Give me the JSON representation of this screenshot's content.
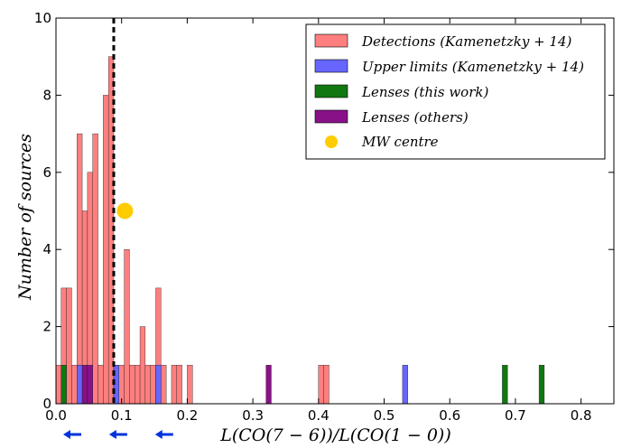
{
  "chart_data": {
    "type": "bar",
    "subtype": "stacked-histogram",
    "xlabel": "L(CO(7 − 6))/L(CO(1 − 0))",
    "ylabel": "Number of sources",
    "xlim": [
      0.0,
      0.85
    ],
    "ylim": [
      0,
      10
    ],
    "xticks": [
      0.0,
      0.1,
      0.2,
      0.3,
      0.4,
      0.5,
      0.6,
      0.7,
      0.8
    ],
    "xtick_labels": [
      "0.0",
      "0.1",
      "0.2",
      "0.3",
      "0.4",
      "0.5",
      "0.6",
      "0.7",
      "0.8"
    ],
    "yticks": [
      0,
      2,
      4,
      6,
      8,
      10
    ],
    "ytick_labels": [
      "0",
      "2",
      "4",
      "6",
      "8",
      "10"
    ],
    "bin_width": 0.008,
    "grid": false,
    "legend_position": "top-right",
    "series": [
      {
        "key": "detections",
        "name": "Detections (Kamenetzky + 14)",
        "color": "#ff7f7f",
        "bins": [
          {
            "x": 0.0,
            "count": 1
          },
          {
            "x": 0.008,
            "count": 3
          },
          {
            "x": 0.016,
            "count": 3
          },
          {
            "x": 0.024,
            "count": 1
          },
          {
            "x": 0.032,
            "count": 7
          },
          {
            "x": 0.04,
            "count": 5
          },
          {
            "x": 0.048,
            "count": 6
          },
          {
            "x": 0.056,
            "count": 7
          },
          {
            "x": 0.064,
            "count": 1
          },
          {
            "x": 0.072,
            "count": 8
          },
          {
            "x": 0.08,
            "count": 9
          },
          {
            "x": 0.088,
            "count": 1
          },
          {
            "x": 0.096,
            "count": 1
          },
          {
            "x": 0.104,
            "count": 4
          },
          {
            "x": 0.112,
            "count": 1
          },
          {
            "x": 0.12,
            "count": 1
          },
          {
            "x": 0.128,
            "count": 2
          },
          {
            "x": 0.136,
            "count": 1
          },
          {
            "x": 0.144,
            "count": 1
          },
          {
            "x": 0.152,
            "count": 3
          },
          {
            "x": 0.16,
            "count": 1
          },
          {
            "x": 0.176,
            "count": 1
          },
          {
            "x": 0.184,
            "count": 1
          },
          {
            "x": 0.2,
            "count": 1
          },
          {
            "x": 0.4,
            "count": 1
          },
          {
            "x": 0.408,
            "count": 1
          }
        ]
      },
      {
        "key": "upper_limits",
        "name": "Upper limits (Kamenetzky + 14)",
        "color": "#6666ff",
        "bins": [
          {
            "x": 0.032,
            "count": 1
          },
          {
            "x": 0.088,
            "count": 1
          },
          {
            "x": 0.152,
            "count": 1
          },
          {
            "x": 0.528,
            "count": 1
          }
        ]
      },
      {
        "key": "lenses_this_work",
        "name": "Lenses (this work)",
        "color": "#117711",
        "bins": [
          {
            "x": 0.008,
            "count": 1
          },
          {
            "x": 0.68,
            "count": 1
          },
          {
            "x": 0.736,
            "count": 1
          }
        ]
      },
      {
        "key": "lenses_others",
        "name": "Lenses (others)",
        "color": "#881188",
        "bins": [
          {
            "x": 0.04,
            "count": 1
          },
          {
            "x": 0.048,
            "count": 1
          },
          {
            "x": 0.32,
            "count": 1
          }
        ]
      }
    ],
    "mw_centre": {
      "name": "MW centre",
      "x": 0.105,
      "y": 5,
      "color": "#ffcc00"
    },
    "vertical_line": {
      "x": 0.088,
      "style": "dashed",
      "color": "#000000"
    },
    "upper_limit_arrows": {
      "color": "#0033dd",
      "x": [
        0.0,
        0.07,
        0.14
      ]
    }
  }
}
